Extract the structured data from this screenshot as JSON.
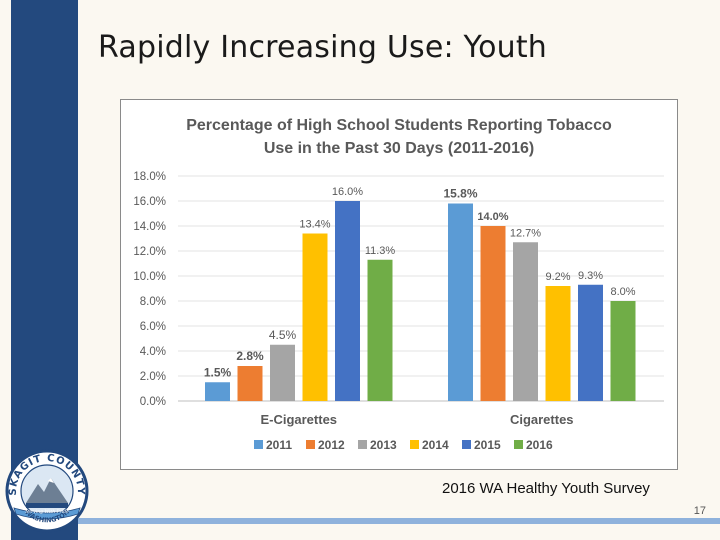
{
  "slide": {
    "title": "Rapidly Increasing Use: Youth",
    "source": "2016 WA Healthy Youth Survey",
    "page_number": "17"
  },
  "seal": {
    "top_text": "SKAGIT COUNTY",
    "bottom_text": "WASHINGTON",
    "motto": "Serving With Pride"
  },
  "colors": {
    "sidebar": "#23497e",
    "rule": "#8fb2dc",
    "series": [
      "#5b9bd5",
      "#ed7d31",
      "#a5a5a5",
      "#ffc000",
      "#4472c4",
      "#70ad47"
    ]
  },
  "chart_data": {
    "type": "bar",
    "title": "Percentage of High School Students Reporting Tobacco Use in the Past 30 Days (2011-2016)",
    "title_lines": [
      "Percentage of High School Students Reporting Tobacco",
      "Use in the Past 30 Days (2011-2016)"
    ],
    "categories": [
      "E-Cigarettes",
      "Cigarettes"
    ],
    "series": [
      {
        "name": "2011",
        "values": [
          1.5,
          15.8
        ],
        "labels": [
          "1.5%",
          "15.8%"
        ]
      },
      {
        "name": "2012",
        "values": [
          2.8,
          14.0
        ],
        "labels": [
          "2.8%",
          "14.0%"
        ]
      },
      {
        "name": "2013",
        "values": [
          4.5,
          12.7
        ],
        "labels": [
          "4.5%",
          "12.7%"
        ]
      },
      {
        "name": "2014",
        "values": [
          13.4,
          9.2
        ],
        "labels": [
          "13.4%",
          "9.2%"
        ]
      },
      {
        "name": "2015",
        "values": [
          16.0,
          9.3
        ],
        "labels": [
          "16.0%",
          "9.3%"
        ]
      },
      {
        "name": "2016",
        "values": [
          11.3,
          8.0
        ],
        "labels": [
          "11.3%",
          "8.0%"
        ]
      }
    ],
    "y_ticks": [
      "0.0%",
      "2.0%",
      "4.0%",
      "6.0%",
      "8.0%",
      "10.0%",
      "12.0%",
      "14.0%",
      "16.0%",
      "18.0%"
    ],
    "ylim": [
      0,
      18
    ],
    "grid": true,
    "legend_position": "bottom",
    "xlabel": "",
    "ylabel": ""
  }
}
